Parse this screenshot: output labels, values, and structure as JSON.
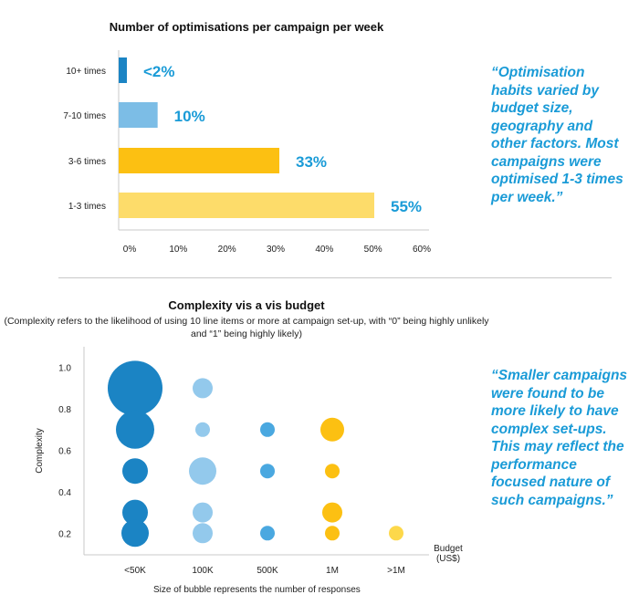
{
  "quotes": {
    "top": "“Optimisation habits varied by budget size, geography and other factors. Most campaigns were optimised 1-3 times per week.”",
    "bottom": "“Smaller campaigns were found to be more likely to have complex set-ups. This may reflect the performance focused nature of such campaigns.”"
  },
  "bubble_note": "Size of bubble represents the number of responses",
  "chart_data": [
    {
      "type": "bar",
      "orientation": "horizontal",
      "title": "Number of optimisations per campaign per week",
      "categories": [
        "10+ times",
        "7-10 times",
        "3-6 times",
        "1-3 times"
      ],
      "values": [
        1.5,
        10,
        33,
        55
      ],
      "bar_widths_pct": [
        1.5,
        8,
        33,
        52.5
      ],
      "data_labels": [
        "<2%",
        "10%",
        "33%",
        "55%"
      ],
      "colors": [
        "#1b84c4",
        "#7cbde6",
        "#fcc012",
        "#fddc6a"
      ],
      "xlim": [
        0,
        60
      ],
      "xticks": [
        "0%",
        "10%",
        "20%",
        "30%",
        "40%",
        "50%",
        "60%"
      ],
      "grid": false
    },
    {
      "type": "scatter",
      "subtype": "bubble",
      "title": "Complexity vis a vis budget",
      "subtitle": "(Complexity refers to the likelihood of using 10 line items or more at campaign set-up, with “0” being highly unlikely and “1” being highly likely)",
      "ylabel": "Complexity",
      "xlabel": "Budget (US$)",
      "xlabel_lines": [
        "Budget",
        "(US$)"
      ],
      "categories": [
        "<50K",
        "100K",
        "500K",
        "1M",
        ">1M"
      ],
      "ylim": [
        0.1,
        1.1
      ],
      "yticks": [
        "0.2",
        "0.4",
        "0.6",
        "0.8",
        "1.0"
      ],
      "ytick_values": [
        0.2,
        0.4,
        0.6,
        0.8,
        1.0
      ],
      "points": [
        {
          "x": "<50K",
          "y": 0.9,
          "size": 30,
          "color": "#1b84c4"
        },
        {
          "x": "<50K",
          "y": 0.7,
          "size": 21,
          "color": "#1b84c4"
        },
        {
          "x": "<50K",
          "y": 0.5,
          "size": 14,
          "color": "#1b84c4"
        },
        {
          "x": "<50K",
          "y": 0.3,
          "size": 14,
          "color": "#1b84c4"
        },
        {
          "x": "<50K",
          "y": 0.2,
          "size": 15,
          "color": "#1b84c4"
        },
        {
          "x": "100K",
          "y": 0.9,
          "size": 11,
          "color": "#93c9ec"
        },
        {
          "x": "100K",
          "y": 0.7,
          "size": 8,
          "color": "#93c9ec"
        },
        {
          "x": "100K",
          "y": 0.5,
          "size": 15,
          "color": "#93c9ec"
        },
        {
          "x": "100K",
          "y": 0.3,
          "size": 11,
          "color": "#93c9ec"
        },
        {
          "x": "100K",
          "y": 0.2,
          "size": 11,
          "color": "#93c9ec"
        },
        {
          "x": "500K",
          "y": 0.7,
          "size": 8,
          "color": "#4aa8e0"
        },
        {
          "x": "500K",
          "y": 0.5,
          "size": 8,
          "color": "#4aa8e0"
        },
        {
          "x": "500K",
          "y": 0.2,
          "size": 8,
          "color": "#4aa8e0"
        },
        {
          "x": "1M",
          "y": 0.7,
          "size": 13,
          "color": "#fcc012"
        },
        {
          "x": "1M",
          "y": 0.5,
          "size": 8,
          "color": "#fcc012"
        },
        {
          "x": "1M",
          "y": 0.3,
          "size": 11,
          "color": "#fcc012"
        },
        {
          "x": "1M",
          "y": 0.2,
          "size": 8,
          "color": "#fcc012"
        },
        {
          "x": ">1M",
          "y": 0.2,
          "size": 8,
          "color": "#fdd84a"
        }
      ]
    }
  ]
}
